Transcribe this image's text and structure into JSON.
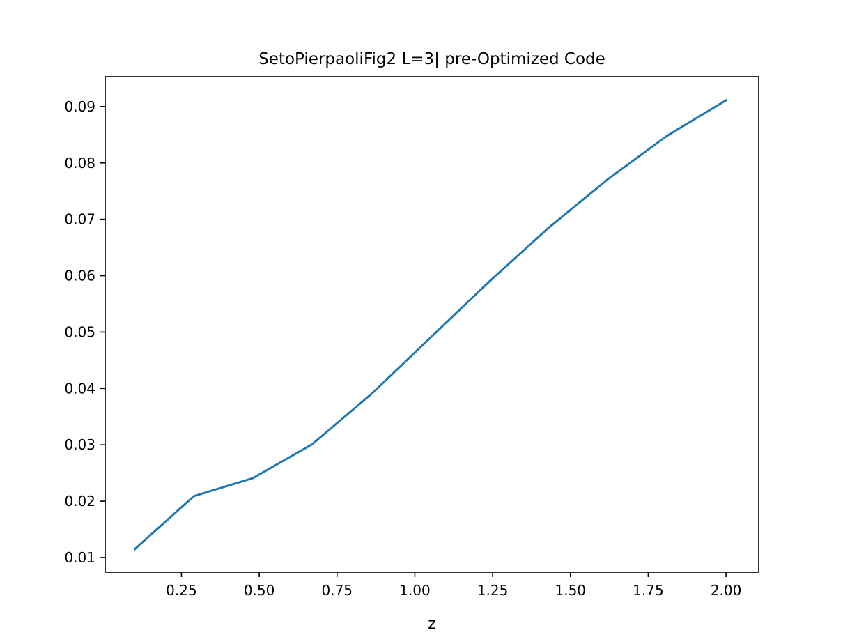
{
  "chart_data": {
    "type": "line",
    "title": "SetoPierpaoliFig2 L=3| pre-Optimized Code",
    "xlabel": "z",
    "ylabel": "",
    "xlim": [
      0.005,
      2.105
    ],
    "ylim": [
      0.0074,
      0.0953
    ],
    "xticks": [
      0.25,
      0.5,
      0.75,
      1.0,
      1.25,
      1.5,
      1.75,
      2.0
    ],
    "xtick_labels": [
      "0.25",
      "0.50",
      "0.75",
      "1.00",
      "1.25",
      "1.50",
      "1.75",
      "2.00"
    ],
    "yticks": [
      0.01,
      0.02,
      0.03,
      0.04,
      0.05,
      0.06,
      0.07,
      0.08,
      0.09
    ],
    "ytick_labels": [
      "0.01",
      "0.02",
      "0.03",
      "0.04",
      "0.05",
      "0.06",
      "0.07",
      "0.08",
      "0.09"
    ],
    "grid": false,
    "legend": "none",
    "series": [
      {
        "color": "#1f77b4",
        "x": [
          0.1,
          0.29,
          0.48,
          0.67,
          0.86,
          1.05,
          1.24,
          1.43,
          1.62,
          1.81,
          2.0
        ],
        "y": [
          0.0115,
          0.0209,
          0.0241,
          0.0301,
          0.039,
          0.049,
          0.059,
          0.0685,
          0.0771,
          0.0848,
          0.0911
        ]
      }
    ]
  }
}
